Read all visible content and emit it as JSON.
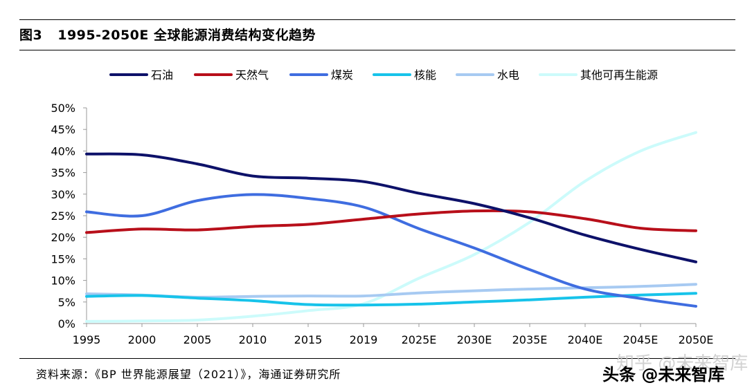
{
  "figure": {
    "number": "图3",
    "title": "1995-2050E 全球能源消费结构变化趋势"
  },
  "source_text": "资料来源：《BP 世界能源展望（2021）》，海通证券研究所",
  "watermark": {
    "text": "头条 @未来智库",
    "ghost_text": "知乎 @未来智库"
  },
  "chart_data": {
    "type": "line",
    "title": "1995-2050E 全球能源消费结构变化趋势",
    "xlabel": "",
    "ylabel": "",
    "categories": [
      "1995",
      "2000",
      "2005",
      "2010",
      "2015",
      "2019",
      "2025E",
      "2030E",
      "2035E",
      "2040E",
      "2045E",
      "2050E"
    ],
    "y_ticks": [
      "0%",
      "5%",
      "10%",
      "15%",
      "20%",
      "25%",
      "30%",
      "35%",
      "40%",
      "45%",
      "50%"
    ],
    "ylim": [
      0,
      50
    ],
    "grid": false,
    "legend_position": "top",
    "series": [
      {
        "name": "石油",
        "color": "#0d1169",
        "values": [
          39.3,
          39.1,
          37.0,
          34.2,
          33.7,
          32.9,
          30.2,
          27.8,
          24.5,
          20.5,
          17.2,
          14.3
        ]
      },
      {
        "name": "天然气",
        "color": "#b80f1a",
        "values": [
          21.1,
          21.9,
          21.7,
          22.5,
          23.0,
          24.2,
          25.4,
          26.1,
          25.9,
          24.3,
          22.1,
          21.5
        ]
      },
      {
        "name": "煤炭",
        "color": "#3f6de0",
        "values": [
          25.9,
          25.0,
          28.5,
          29.9,
          29.0,
          27.0,
          22.0,
          17.5,
          12.5,
          8.0,
          5.8,
          4.0
        ]
      },
      {
        "name": "核能",
        "color": "#17c3ea",
        "values": [
          6.3,
          6.5,
          5.9,
          5.3,
          4.4,
          4.3,
          4.5,
          5.0,
          5.5,
          6.1,
          6.6,
          7.0
        ]
      },
      {
        "name": "水电",
        "color": "#a7caf2",
        "values": [
          6.9,
          6.6,
          6.1,
          6.3,
          6.4,
          6.4,
          7.1,
          7.6,
          8.0,
          8.3,
          8.6,
          9.1
        ]
      },
      {
        "name": "其他可再生能源",
        "color": "#ccfbfb",
        "values": [
          0.5,
          0.6,
          0.8,
          1.7,
          3.0,
          4.6,
          10.5,
          16.0,
          23.5,
          33.0,
          40.0,
          44.3
        ]
      }
    ]
  }
}
